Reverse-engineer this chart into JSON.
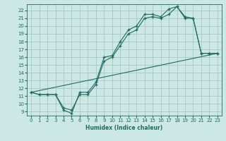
{
  "xlabel": "Humidex (Indice chaleur)",
  "background_color": "#cce8e5",
  "grid_color": "#aaccca",
  "line_color": "#1e6b60",
  "xlim": [
    -0.5,
    23.5
  ],
  "ylim": [
    8.5,
    22.8
  ],
  "xticks": [
    0,
    1,
    2,
    3,
    4,
    5,
    6,
    7,
    8,
    9,
    10,
    11,
    12,
    13,
    14,
    15,
    16,
    17,
    18,
    19,
    20,
    21,
    22,
    23
  ],
  "yticks": [
    9,
    10,
    11,
    12,
    13,
    14,
    15,
    16,
    17,
    18,
    19,
    20,
    21,
    22
  ],
  "line1_x": [
    0,
    1,
    2,
    3,
    4,
    5,
    6,
    7,
    8,
    9,
    10,
    11,
    12,
    13,
    14,
    15,
    16,
    17,
    18,
    19,
    20,
    21,
    22,
    23
  ],
  "line1_y": [
    11.5,
    11.2,
    11.2,
    11.2,
    9.5,
    9.2,
    11.2,
    11.2,
    12.5,
    15.5,
    16.0,
    17.5,
    19.0,
    19.5,
    21.0,
    21.2,
    21.0,
    21.5,
    22.5,
    21.0,
    21.0,
    16.5,
    16.5,
    16.5
  ],
  "line2_x": [
    0,
    1,
    2,
    3,
    4,
    5,
    6,
    7,
    8,
    9,
    10,
    11,
    12,
    13,
    14,
    15,
    16,
    17,
    18,
    19,
    20,
    21,
    22,
    23
  ],
  "line2_y": [
    11.5,
    11.2,
    11.2,
    11.2,
    9.2,
    8.8,
    11.5,
    11.5,
    12.8,
    16.0,
    16.2,
    18.0,
    19.5,
    20.0,
    21.5,
    21.5,
    21.2,
    22.2,
    22.5,
    21.2,
    21.0,
    16.5,
    16.5,
    16.5
  ],
  "line3_x": [
    0,
    23
  ],
  "line3_y": [
    11.5,
    16.5
  ]
}
